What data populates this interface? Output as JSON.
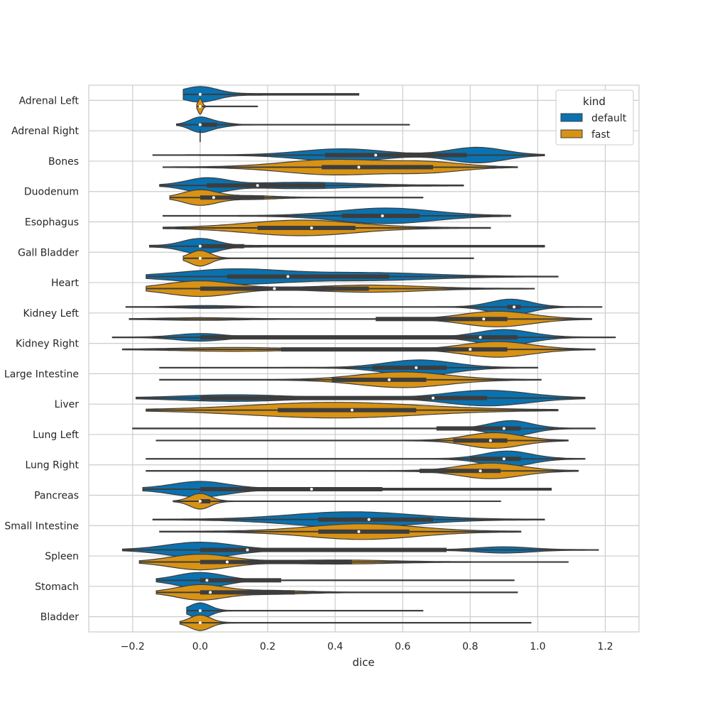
{
  "chart_data": {
    "type": "violin",
    "orientation": "horizontal",
    "xlabel": "dice",
    "ylabel": "",
    "xlim": [
      -0.33,
      1.3
    ],
    "x_ticks": [
      -0.2,
      0.0,
      0.2,
      0.4,
      0.6,
      0.8,
      1.0,
      1.2
    ],
    "x_tick_labels": [
      "−0.2",
      "0.0",
      "0.2",
      "0.4",
      "0.6",
      "0.8",
      "1.0",
      "1.2"
    ],
    "grid": true,
    "legend": {
      "title": "kind",
      "placement": "top-right",
      "entries": [
        {
          "label": "default",
          "color": "#0a72b0"
        },
        {
          "label": "fast",
          "color": "#d89214"
        }
      ]
    },
    "categories": [
      "Adrenal Left",
      "Adrenal Right",
      "Bones",
      "Duodenum",
      "Esophagus",
      "Gall Bladder",
      "Heart",
      "Kidney Left",
      "Kidney Right",
      "Large Intestine",
      "Liver",
      "Lung Left",
      "Lung Right",
      "Pancreas",
      "Small Intestine",
      "Spleen",
      "Stomach",
      "Bladder"
    ],
    "series": [
      {
        "name": "default",
        "color": "#0a72b0",
        "violins": [
          {
            "min": -0.05,
            "max": 0.47,
            "q1": 0.0,
            "median": 0.0,
            "q3": 0.0,
            "modes": [
              [
                0.0,
                0.3,
                0.05
              ]
            ]
          },
          {
            "min": -0.07,
            "max": 0.62,
            "q1": 0.0,
            "median": 0.0,
            "q3": 0.05,
            "modes": [
              [
                0.0,
                1.0,
                0.03
              ],
              [
                0.06,
                0.25,
                0.03
              ]
            ]
          },
          {
            "min": -0.14,
            "max": 1.02,
            "q1": 0.37,
            "median": 0.52,
            "q3": 0.79,
            "modes": [
              [
                0.42,
                0.6,
                0.12
              ],
              [
                0.82,
                0.75,
                0.08
              ]
            ]
          },
          {
            "min": -0.12,
            "max": 0.78,
            "q1": 0.02,
            "median": 0.17,
            "q3": 0.37,
            "modes": [
              [
                0.02,
                0.5,
                0.06
              ],
              [
                0.3,
                0.2,
                0.15
              ]
            ]
          },
          {
            "min": -0.11,
            "max": 0.92,
            "q1": 0.42,
            "median": 0.54,
            "q3": 0.65,
            "modes": [
              [
                0.55,
                0.8,
                0.14
              ]
            ]
          },
          {
            "min": -0.15,
            "max": 1.02,
            "q1": 0.0,
            "median": 0.0,
            "q3": 0.13,
            "modes": [
              [
                0.0,
                0.3,
                0.05
              ]
            ]
          },
          {
            "min": -0.16,
            "max": 1.06,
            "q1": 0.08,
            "median": 0.26,
            "q3": 0.56,
            "modes": [
              [
                0.1,
                0.7,
                0.15
              ],
              [
                0.5,
                0.35,
                0.18
              ]
            ]
          },
          {
            "min": -0.22,
            "max": 1.19,
            "q1": 0.91,
            "median": 0.93,
            "q3": 0.95,
            "modes": [
              [
                0.92,
                1.0,
                0.06
              ],
              [
                0.02,
                0.15,
                0.08
              ]
            ]
          },
          {
            "min": -0.26,
            "max": 1.23,
            "q1": 0.0,
            "median": 0.83,
            "q3": 0.94,
            "modes": [
              [
                0.9,
                0.85,
                0.08
              ],
              [
                0.0,
                0.4,
                0.07
              ]
            ]
          },
          {
            "min": -0.12,
            "max": 1.0,
            "q1": 0.51,
            "median": 0.64,
            "q3": 0.73,
            "modes": [
              [
                0.65,
                0.85,
                0.1
              ]
            ]
          },
          {
            "min": -0.19,
            "max": 1.14,
            "q1": 0.0,
            "median": 0.69,
            "q3": 0.85,
            "modes": [
              [
                0.85,
                0.75,
                0.12
              ],
              [
                0.1,
                0.3,
                0.15
              ]
            ]
          },
          {
            "min": -0.2,
            "max": 1.17,
            "q1": 0.7,
            "median": 0.9,
            "q3": 0.95,
            "modes": [
              [
                0.92,
                0.7,
                0.06
              ]
            ]
          },
          {
            "min": -0.16,
            "max": 1.14,
            "q1": 0.8,
            "median": 0.9,
            "q3": 0.95,
            "modes": [
              [
                0.91,
                0.8,
                0.07
              ]
            ]
          },
          {
            "min": -0.17,
            "max": 1.04,
            "q1": 0.0,
            "median": 0.33,
            "q3": 0.54,
            "modes": [
              [
                0.0,
                0.25,
                0.08
              ]
            ]
          },
          {
            "min": -0.14,
            "max": 1.02,
            "q1": 0.35,
            "median": 0.5,
            "q3": 0.69,
            "modes": [
              [
                0.45,
                0.7,
                0.18
              ]
            ]
          },
          {
            "min": -0.23,
            "max": 1.18,
            "q1": 0.0,
            "median": 0.14,
            "q3": 0.73,
            "modes": [
              [
                0.0,
                0.8,
                0.1
              ],
              [
                0.9,
                0.3,
                0.08
              ]
            ]
          },
          {
            "min": -0.13,
            "max": 0.93,
            "q1": 0.0,
            "median": 0.02,
            "q3": 0.24,
            "modes": [
              [
                0.0,
                0.9,
                0.07
              ]
            ]
          },
          {
            "min": -0.04,
            "max": 0.66,
            "q1": 0.0,
            "median": 0.0,
            "q3": 0.0,
            "modes": [
              [
                0.0,
                1.0,
                0.03
              ]
            ]
          }
        ]
      },
      {
        "name": "fast",
        "color": "#d89214",
        "violins": [
          {
            "min": -0.01,
            "max": 0.17,
            "q1": 0.0,
            "median": 0.0,
            "q3": 0.0,
            "modes": [
              [
                0.0,
                1.0,
                0.006
              ]
            ]
          },
          {
            "min": 0.0,
            "max": 0.0,
            "q1": 0.0,
            "median": 0.0,
            "q3": 0.0,
            "modes": [
              [
                0.0,
                0.2,
                0.005
              ]
            ]
          },
          {
            "min": -0.11,
            "max": 0.94,
            "q1": 0.36,
            "median": 0.47,
            "q3": 0.69,
            "modes": [
              [
                0.4,
                0.85,
                0.15
              ],
              [
                0.68,
                0.5,
                0.1
              ]
            ]
          },
          {
            "min": -0.09,
            "max": 0.66,
            "q1": 0.0,
            "median": 0.04,
            "q3": 0.19,
            "modes": [
              [
                0.0,
                0.9,
                0.05
              ],
              [
                0.15,
                0.2,
                0.07
              ]
            ]
          },
          {
            "min": -0.11,
            "max": 0.86,
            "q1": 0.17,
            "median": 0.33,
            "q3": 0.46,
            "modes": [
              [
                0.3,
                0.6,
                0.16
              ]
            ]
          },
          {
            "min": -0.05,
            "max": 0.81,
            "q1": 0.0,
            "median": 0.0,
            "q3": 0.0,
            "modes": [
              [
                0.0,
                1.0,
                0.03
              ]
            ]
          },
          {
            "min": -0.16,
            "max": 0.99,
            "q1": 0.0,
            "median": 0.22,
            "q3": 0.5,
            "modes": [
              [
                0.0,
                0.8,
                0.1
              ],
              [
                0.5,
                0.35,
                0.15
              ]
            ]
          },
          {
            "min": -0.21,
            "max": 1.16,
            "q1": 0.52,
            "median": 0.84,
            "q3": 0.91,
            "modes": [
              [
                0.88,
                0.75,
                0.1
              ],
              [
                0.0,
                0.1,
                0.1
              ]
            ]
          },
          {
            "min": -0.23,
            "max": 1.17,
            "q1": 0.24,
            "median": 0.8,
            "q3": 0.91,
            "modes": [
              [
                0.88,
                0.9,
                0.1
              ],
              [
                0.1,
                0.2,
                0.15
              ]
            ]
          },
          {
            "min": -0.12,
            "max": 1.01,
            "q1": 0.39,
            "median": 0.56,
            "q3": 0.67,
            "modes": [
              [
                0.6,
                0.8,
                0.13
              ]
            ]
          },
          {
            "min": -0.16,
            "max": 1.06,
            "q1": 0.23,
            "median": 0.45,
            "q3": 0.64,
            "modes": [
              [
                0.4,
                0.55,
                0.25
              ]
            ]
          },
          {
            "min": -0.13,
            "max": 1.09,
            "q1": 0.75,
            "median": 0.86,
            "q3": 0.91,
            "modes": [
              [
                0.87,
                0.8,
                0.08
              ]
            ]
          },
          {
            "min": -0.16,
            "max": 1.12,
            "q1": 0.65,
            "median": 0.83,
            "q3": 0.89,
            "modes": [
              [
                0.86,
                0.7,
                0.09
              ]
            ]
          },
          {
            "min": -0.08,
            "max": 0.89,
            "q1": 0.0,
            "median": 0.0,
            "q3": 0.03,
            "modes": [
              [
                0.0,
                0.9,
                0.03
              ]
            ]
          },
          {
            "min": -0.12,
            "max": 0.95,
            "q1": 0.35,
            "median": 0.47,
            "q3": 0.62,
            "modes": [
              [
                0.48,
                0.65,
                0.16
              ]
            ]
          },
          {
            "min": -0.18,
            "max": 1.09,
            "q1": 0.0,
            "median": 0.08,
            "q3": 0.45,
            "modes": [
              [
                0.0,
                0.85,
                0.09
              ],
              [
                0.4,
                0.2,
                0.15
              ]
            ]
          },
          {
            "min": -0.13,
            "max": 0.94,
            "q1": 0.0,
            "median": 0.03,
            "q3": 0.28,
            "modes": [
              [
                0.0,
                0.85,
                0.07
              ],
              [
                0.2,
                0.2,
                0.1
              ]
            ]
          },
          {
            "min": -0.06,
            "max": 0.98,
            "q1": 0.0,
            "median": 0.0,
            "q3": 0.0,
            "modes": [
              [
                0.0,
                0.9,
                0.03
              ]
            ]
          }
        ]
      }
    ]
  }
}
